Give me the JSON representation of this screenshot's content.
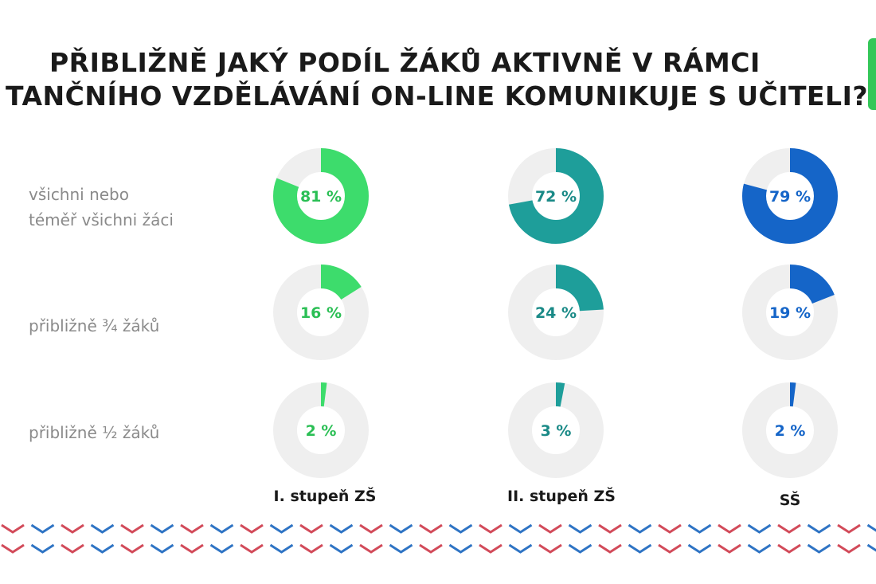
{
  "title": {
    "line1": "PŘIBLIŽNĚ JAKÝ PODÍL ŽÁKŮ AKTIVNĚ V RÁMCI",
    "line2": "TANČNÍHO VZDĚLÁVÁNÍ ON-LINE KOMUNIKUJE S UČITELI?"
  },
  "chart_data": {
    "type": "donut-grid",
    "rows": [
      {
        "label_lines": [
          "všichni nebo",
          "téměř všichni žáci"
        ]
      },
      {
        "label_lines": [
          "přibližně ¾ žáků"
        ]
      },
      {
        "label_lines": [
          "přibližně ½ žáků"
        ]
      }
    ],
    "columns": [
      {
        "name": "I. stupeň ZŠ",
        "color": "#3ddc6c",
        "text_color": "#2bbf55",
        "values": [
          81,
          16,
          2
        ]
      },
      {
        "name": "II. stupeň ZŠ",
        "color": "#1e9e9a",
        "text_color": "#1a8a87",
        "values": [
          72,
          24,
          3
        ]
      },
      {
        "name": "SŠ",
        "color": "#1565c8",
        "text_color": "#1565c8",
        "values": [
          79,
          19,
          2
        ]
      }
    ],
    "value_format": "{v} %",
    "track_color": "#efefef"
  }
}
